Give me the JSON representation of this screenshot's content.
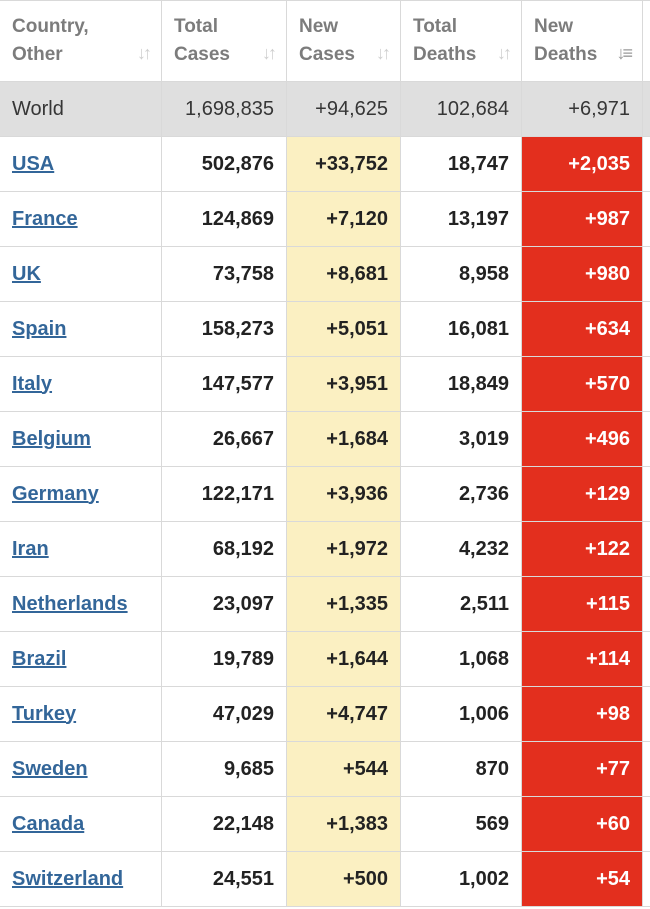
{
  "columns": {
    "country": [
      "Country,",
      "Other"
    ],
    "total_cases": [
      "Total",
      "Cases"
    ],
    "new_cases": [
      "New",
      "Cases"
    ],
    "total_deaths": [
      "Total",
      "Deaths"
    ],
    "new_deaths": [
      "New",
      "Deaths"
    ]
  },
  "icons": {
    "sort": "sort-arrows-icon",
    "sort_active": "sort-descending-icon"
  },
  "colors": {
    "link": "#336699",
    "new_cases_bg": "#fbf0c2",
    "new_deaths_bg": "#e32f1e",
    "world_bg": "#dfdfdf"
  },
  "world": {
    "country": "World",
    "total_cases": "1,698,835",
    "new_cases": "+94,625",
    "total_deaths": "102,684",
    "new_deaths": "+6,971"
  },
  "rows": [
    {
      "country": "USA",
      "total_cases": "502,876",
      "new_cases": "+33,752",
      "total_deaths": "18,747",
      "new_deaths": "+2,035"
    },
    {
      "country": "France",
      "total_cases": "124,869",
      "new_cases": "+7,120",
      "total_deaths": "13,197",
      "new_deaths": "+987"
    },
    {
      "country": "UK",
      "total_cases": "73,758",
      "new_cases": "+8,681",
      "total_deaths": "8,958",
      "new_deaths": "+980"
    },
    {
      "country": "Spain",
      "total_cases": "158,273",
      "new_cases": "+5,051",
      "total_deaths": "16,081",
      "new_deaths": "+634"
    },
    {
      "country": "Italy",
      "total_cases": "147,577",
      "new_cases": "+3,951",
      "total_deaths": "18,849",
      "new_deaths": "+570"
    },
    {
      "country": "Belgium",
      "total_cases": "26,667",
      "new_cases": "+1,684",
      "total_deaths": "3,019",
      "new_deaths": "+496"
    },
    {
      "country": "Germany",
      "total_cases": "122,171",
      "new_cases": "+3,936",
      "total_deaths": "2,736",
      "new_deaths": "+129"
    },
    {
      "country": "Iran",
      "total_cases": "68,192",
      "new_cases": "+1,972",
      "total_deaths": "4,232",
      "new_deaths": "+122"
    },
    {
      "country": "Netherlands",
      "total_cases": "23,097",
      "new_cases": "+1,335",
      "total_deaths": "2,511",
      "new_deaths": "+115"
    },
    {
      "country": "Brazil",
      "total_cases": "19,789",
      "new_cases": "+1,644",
      "total_deaths": "1,068",
      "new_deaths": "+114"
    },
    {
      "country": "Turkey",
      "total_cases": "47,029",
      "new_cases": "+4,747",
      "total_deaths": "1,006",
      "new_deaths": "+98"
    },
    {
      "country": "Sweden",
      "total_cases": "9,685",
      "new_cases": "+544",
      "total_deaths": "870",
      "new_deaths": "+77"
    },
    {
      "country": "Canada",
      "total_cases": "22,148",
      "new_cases": "+1,383",
      "total_deaths": "569",
      "new_deaths": "+60"
    },
    {
      "country": "Switzerland",
      "total_cases": "24,551",
      "new_cases": "+500",
      "total_deaths": "1,002",
      "new_deaths": "+54"
    }
  ]
}
